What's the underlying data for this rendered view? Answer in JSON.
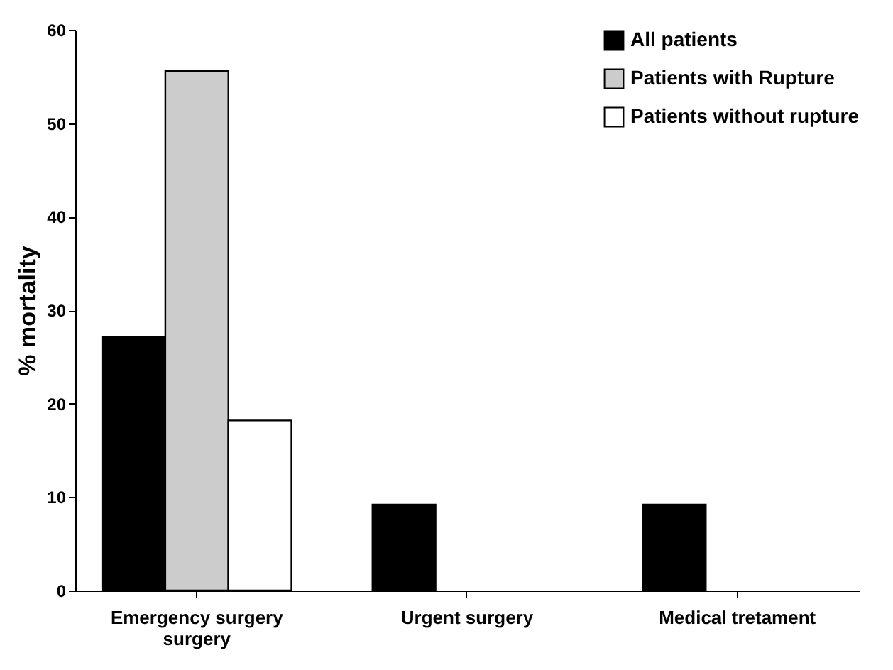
{
  "chart_data": {
    "type": "bar",
    "ylabel": "% mortality",
    "categories": [
      "Emergency surgery\nsurgery",
      "Urgent surgery",
      "Medical tretament"
    ],
    "series": [
      {
        "name": "All patients",
        "color": "#000000",
        "values": [
          27.1,
          9.2,
          9.2
        ]
      },
      {
        "name": "Patients with Rupture",
        "color": "#cccccc",
        "values": [
          55.6,
          null,
          null
        ]
      },
      {
        "name": "Patients without rupture",
        "color": "#ffffff",
        "values": [
          18.2,
          null,
          null
        ]
      }
    ],
    "ylim": [
      0,
      60
    ],
    "yticks": [
      0,
      10,
      20,
      30,
      40,
      50,
      60
    ],
    "grid": false,
    "legend": "top right"
  }
}
